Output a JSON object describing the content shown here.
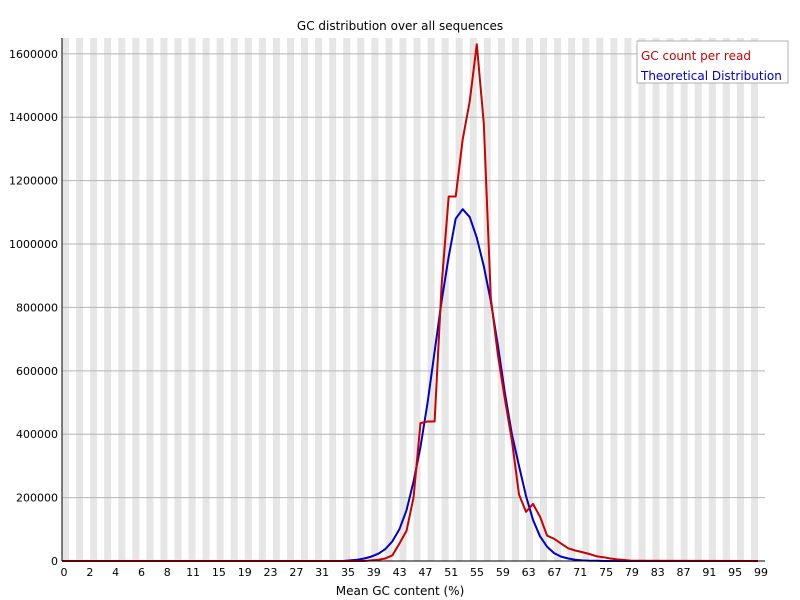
{
  "chart_data": {
    "type": "line",
    "title": "GC distribution over all sequences",
    "xlabel": "Mean GC content (%)",
    "ylabel": "",
    "xlim": [
      0,
      100
    ],
    "ylim": [
      0,
      1650000
    ],
    "x_tick_labels": [
      "0",
      "2",
      "4",
      "6",
      "8",
      "11",
      "15",
      "19",
      "23",
      "27",
      "31",
      "35",
      "39",
      "43",
      "47",
      "51",
      "55",
      "59",
      "63",
      "67",
      "71",
      "75",
      "79",
      "83",
      "87",
      "91",
      "95",
      "99"
    ],
    "y_tick_labels": [
      "0",
      "200000",
      "400000",
      "600000",
      "800000",
      "1000000",
      "1200000",
      "1400000",
      "1600000"
    ],
    "y_ticks": [
      0,
      200000,
      400000,
      600000,
      800000,
      1000000,
      1200000,
      1400000,
      1600000
    ],
    "grid": true,
    "legend_position": "top-right",
    "series": [
      {
        "name": "GC count per read",
        "color": "#cc0000",
        "x": [
          0,
          43,
          44,
          45,
          46,
          47,
          48,
          49,
          50,
          51,
          52,
          53,
          54,
          55,
          56,
          57,
          58,
          59,
          60,
          61,
          62,
          63,
          64,
          65,
          66,
          67,
          68,
          69,
          70,
          71,
          72,
          73,
          74,
          75,
          76,
          77,
          78,
          79,
          80,
          81,
          99
        ],
        "y": [
          0,
          0,
          2000,
          4000,
          8000,
          18000,
          55000,
          95000,
          200000,
          435000,
          440000,
          440000,
          870000,
          1150000,
          1150000,
          1330000,
          1450000,
          1630000,
          1380000,
          830000,
          650000,
          510000,
          380000,
          210000,
          155000,
          180000,
          140000,
          80000,
          70000,
          55000,
          40000,
          33000,
          28000,
          22000,
          15000,
          12000,
          8000,
          5000,
          3000,
          1000,
          0
        ]
      },
      {
        "name": "Theoretical Distribution",
        "color": "#0000cc",
        "x": [
          0,
          40,
          41,
          42,
          43,
          44,
          45,
          46,
          47,
          48,
          49,
          50,
          51,
          52,
          53,
          54,
          55,
          56,
          57,
          58,
          59,
          60,
          61,
          62,
          63,
          64,
          65,
          66,
          67,
          68,
          69,
          70,
          71,
          72,
          73,
          74,
          75,
          76,
          77,
          78,
          79,
          80,
          81,
          82,
          83,
          99
        ],
        "y": [
          0,
          0,
          2000,
          4000,
          8000,
          14000,
          23000,
          38000,
          62000,
          100000,
          160000,
          250000,
          360000,
          500000,
          660000,
          820000,
          960000,
          1080000,
          1110000,
          1085000,
          1020000,
          930000,
          820000,
          680000,
          530000,
          400000,
          300000,
          205000,
          130000,
          78000,
          45000,
          25000,
          14000,
          8000,
          4000,
          2000,
          1000,
          500,
          0,
          0,
          0,
          0,
          0,
          0,
          0,
          0
        ]
      }
    ]
  },
  "colors": {
    "grid_band": "#e6e6e6",
    "grid_line": "#b4b4b4",
    "axis": "#000000"
  }
}
